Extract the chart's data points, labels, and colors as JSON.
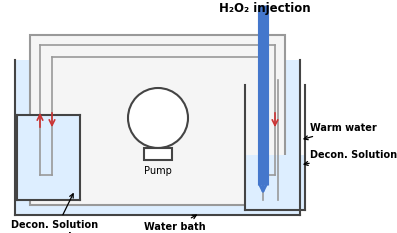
{
  "bg_color": "#ffffff",
  "light_blue": "#ddeeff",
  "pipe_color": "#999999",
  "red_color": "#cc3333",
  "blue_color": "#4477cc",
  "dark_color": "#444444",
  "labels": {
    "h2o2": "H₂O₂ injection",
    "warm_water": "Warm water",
    "decon_solution": "Decon. Solution",
    "pump": "Pump",
    "decon_vessel": "Decon. Solution\nvessel",
    "water_bath": "Water bath"
  },
  "figsize": [
    3.97,
    2.33
  ],
  "dpi": 100
}
